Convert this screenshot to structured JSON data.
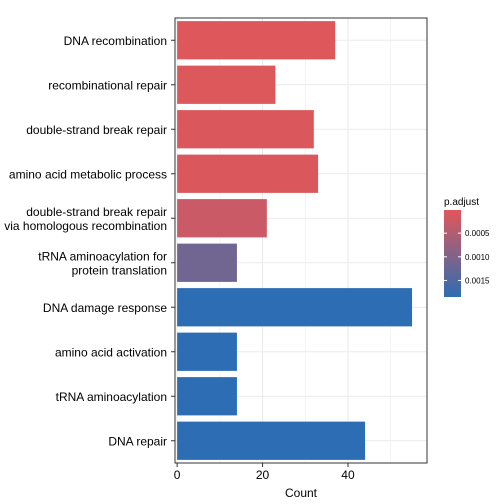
{
  "chart_data": {
    "type": "bar",
    "orientation": "horizontal",
    "categories": [
      "DNA recombination",
      "recombinational repair",
      "double-strand break repair",
      "amino acid metabolic process",
      "double-strand break repair\nvia homologous recombination",
      "tRNA aminoacylation for\nprotein translation",
      "DNA damage response",
      "amino acid activation",
      "tRNA aminoacylation",
      "DNA repair"
    ],
    "values": [
      37,
      23,
      32,
      33,
      21,
      14,
      55,
      14,
      14,
      44
    ],
    "color_values": [
      5e-05,
      6e-05,
      8e-05,
      8e-05,
      0.00025,
      0.00115,
      0.00185,
      0.00185,
      0.00185,
      0.00185
    ],
    "xlabel": "Count",
    "ylabel": "",
    "xlim": [
      -0.5,
      58.5
    ],
    "xticks": [
      0,
      20,
      40
    ],
    "xtick_labels": [
      "0",
      "20",
      "40"
    ],
    "grid": true,
    "legend": {
      "title": "p.adjust",
      "placement": "right",
      "ticks": [
        0.0005,
        0.001,
        0.0015
      ],
      "tick_labels": [
        "0.0005",
        "0.0010",
        "0.0015"
      ],
      "range": [
        1e-05,
        0.00185
      ],
      "low_color": "#e15759",
      "high_color": "#2d6db3"
    },
    "colors": {
      "panel_border": "#333333",
      "grid": "#ebebeb",
      "text": "#000000"
    }
  }
}
